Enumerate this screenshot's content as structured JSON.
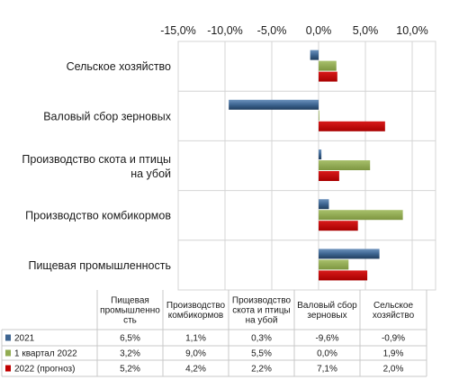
{
  "chart_data": {
    "type": "bar",
    "orientation": "horizontal",
    "x_ticks": [
      "-15,0%",
      "-10,0%",
      "-5,0%",
      "0,0%",
      "5,0%",
      "10,0%"
    ],
    "x_tick_values": [
      -15,
      -10,
      -5,
      0,
      5,
      10
    ],
    "xlim": [
      -15,
      10
    ],
    "categories": [
      "Сельское хозяйство",
      "Валовый сбор зерновых",
      "Производство скота и птицы на убой",
      "Производство комбикормов",
      "Пищевая промышленность"
    ],
    "series": [
      {
        "name": "2021",
        "color": "#3e6591",
        "values": [
          -0.9,
          -9.6,
          0.3,
          1.1,
          6.5
        ]
      },
      {
        "name": "1 квартал 2022",
        "color": "#92ac52",
        "values": [
          1.9,
          0.0,
          5.5,
          9.0,
          3.2
        ]
      },
      {
        "name": "2022 (прогноз)",
        "color": "#c00000",
        "values": [
          2.0,
          7.1,
          2.2,
          4.2,
          5.2
        ]
      }
    ],
    "table": {
      "columns": [
        "Пищевая промышленно сть",
        "Производство комбикормов",
        "Производство скота и птицы на убой",
        "Валовый сбор зерновых",
        "Сельское хозяйство"
      ],
      "rows": [
        {
          "series": "2021",
          "cells": [
            "6,5%",
            "1,1%",
            "0,3%",
            "-9,6%",
            "-0,9%"
          ]
        },
        {
          "series": "1 квартал 2022",
          "cells": [
            "3,2%",
            "9,0%",
            "5,5%",
            "0,0%",
            "1,9%"
          ]
        },
        {
          "series": "2022 (прогноз)",
          "cells": [
            "5,2%",
            "4,2%",
            "2,2%",
            "7,1%",
            "2,0%"
          ]
        }
      ]
    },
    "grid": true
  }
}
